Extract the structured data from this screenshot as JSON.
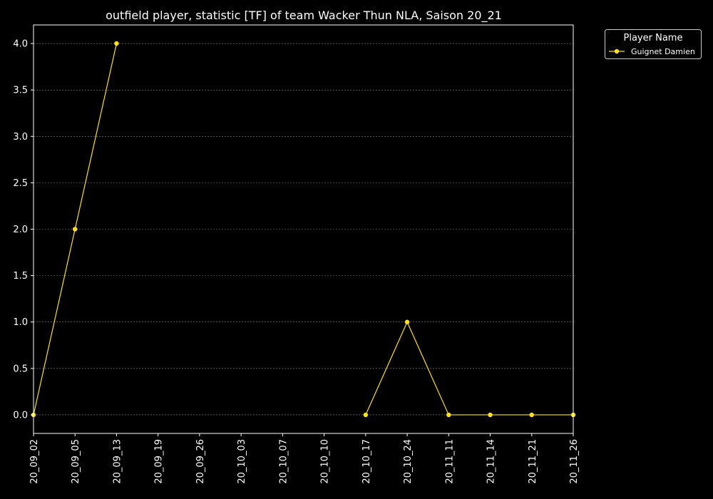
{
  "chart_data": {
    "type": "line",
    "title": "outfield player, statistic [TF] of team Wacker Thun NLA, Saison 20_21",
    "xlabel": "",
    "ylabel": "",
    "categories": [
      "20_09_02",
      "20_09_05",
      "20_09_13",
      "20_09_19",
      "20_09_26",
      "20_10_03",
      "20_10_07",
      "20_10_10",
      "20_10_17",
      "20_10_24",
      "20_11_11",
      "20_11_14",
      "20_11_21",
      "20_11_26"
    ],
    "ylim": [
      -0.2,
      4.2
    ],
    "yticks": [
      0.0,
      0.5,
      1.0,
      1.5,
      2.0,
      2.5,
      3.0,
      3.5,
      4.0
    ],
    "ytick_labels": [
      "0.0",
      "0.5",
      "1.0",
      "1.5",
      "2.0",
      "2.5",
      "3.0",
      "3.5",
      "4.0"
    ],
    "grid": "horizontal dashed",
    "legend": {
      "title": "Player Name",
      "placement": "outside top-right"
    },
    "series": [
      {
        "name": "Guignet Damien",
        "color": "#ffe119",
        "values": [
          0,
          2,
          4,
          null,
          null,
          null,
          null,
          null,
          0,
          1,
          0,
          0,
          0,
          0
        ]
      }
    ]
  },
  "colors": {
    "background": "#000000",
    "foreground": "#ffffff",
    "grid": "#888888"
  }
}
